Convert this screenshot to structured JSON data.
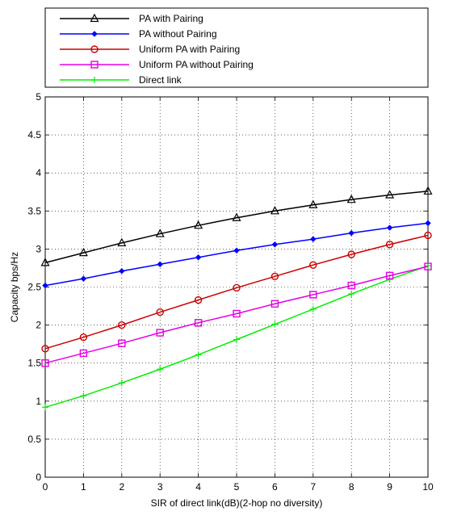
{
  "chart_data": {
    "type": "line",
    "title": "",
    "xlabel": "SIR of direct link(dB)(2-hop no diversity)",
    "ylabel": "Capacity bps/Hz",
    "xlim": [
      0,
      10
    ],
    "ylim": [
      0,
      5
    ],
    "x_ticks": [
      0,
      1,
      2,
      3,
      4,
      5,
      6,
      7,
      8,
      9,
      10
    ],
    "y_ticks": [
      0,
      0.5,
      1,
      1.5,
      2,
      2.5,
      3,
      3.5,
      4,
      4.5,
      5
    ],
    "x_tick_labels": [
      "0",
      "1",
      "2",
      "3",
      "4",
      "5",
      "6",
      "7",
      "8",
      "9",
      "10"
    ],
    "y_tick_labels": [
      "0",
      "0.5",
      "1",
      "1.5",
      "2",
      "2.5",
      "3",
      "3.5",
      "4",
      "4.5",
      "5"
    ],
    "grid": true,
    "grid_style": "dotted",
    "legend_position": "above-plot",
    "x": [
      0,
      1,
      2,
      3,
      4,
      5,
      6,
      7,
      8,
      9,
      10
    ],
    "series": [
      {
        "name": "PA with Pairing",
        "color": "#000000",
        "marker": "triangle",
        "values": [
          2.82,
          2.95,
          3.08,
          3.2,
          3.31,
          3.41,
          3.5,
          3.58,
          3.65,
          3.71,
          3.76
        ]
      },
      {
        "name": "PA without Pairing",
        "color": "#0000ff",
        "marker": "diamond",
        "values": [
          2.52,
          2.61,
          2.71,
          2.8,
          2.89,
          2.98,
          3.06,
          3.13,
          3.21,
          3.28,
          3.34
        ]
      },
      {
        "name": "Uniform PA with Pairing",
        "color": "#cc0000",
        "marker": "circle",
        "values": [
          1.69,
          1.84,
          2.0,
          2.17,
          2.33,
          2.49,
          2.64,
          2.79,
          2.93,
          3.06,
          3.18
        ]
      },
      {
        "name": "Uniform PA without Pairing",
        "color": "#e600e6",
        "marker": "square",
        "values": [
          1.5,
          1.63,
          1.76,
          1.9,
          2.03,
          2.15,
          2.28,
          2.4,
          2.52,
          2.65,
          2.77
        ]
      },
      {
        "name": "Direct link",
        "color": "#00ee00",
        "marker": "plus",
        "values": [
          0.92,
          1.07,
          1.24,
          1.42,
          1.61,
          1.81,
          2.01,
          2.21,
          2.41,
          2.6,
          2.78
        ]
      }
    ]
  }
}
